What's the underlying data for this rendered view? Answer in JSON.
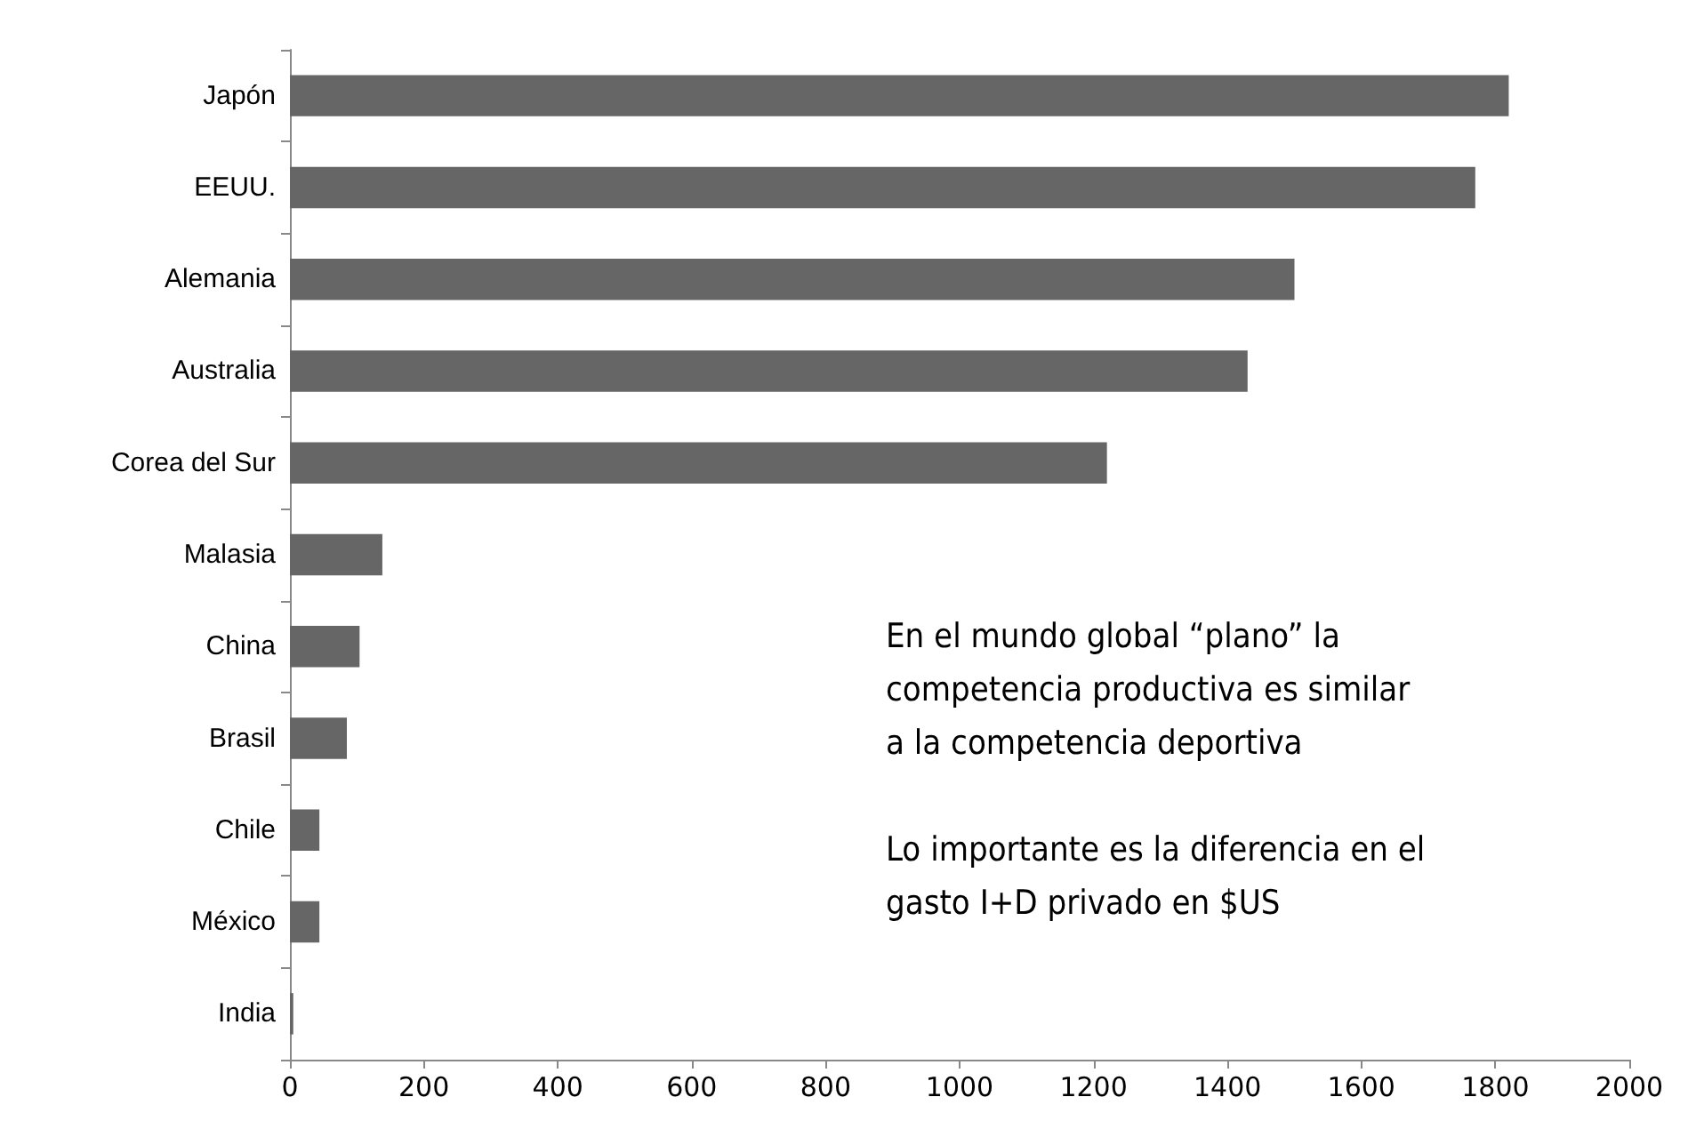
{
  "chart_data": {
    "type": "bar",
    "orientation": "horizontal",
    "categories": [
      "Japón",
      "EEUU.",
      "Alemania",
      "Australia",
      "Corea del Sur",
      "Malasia",
      "China",
      "Brasil",
      "Chile",
      "México",
      "India"
    ],
    "values": [
      1820,
      1770,
      1500,
      1430,
      1220,
      138,
      104,
      85,
      44,
      44,
      5
    ],
    "color": "#666666",
    "xlim": [
      0,
      2000
    ],
    "xticks": [
      0,
      200,
      400,
      600,
      800,
      1000,
      1200,
      1400,
      1600,
      1800,
      2000
    ],
    "grid": false,
    "annotations": [
      "En el mundo global “plano” la\ncompetencia productiva es similar\na la competencia deportiva",
      "Lo importante es la diferencia en el\ngasto I+D privado en $US"
    ]
  }
}
